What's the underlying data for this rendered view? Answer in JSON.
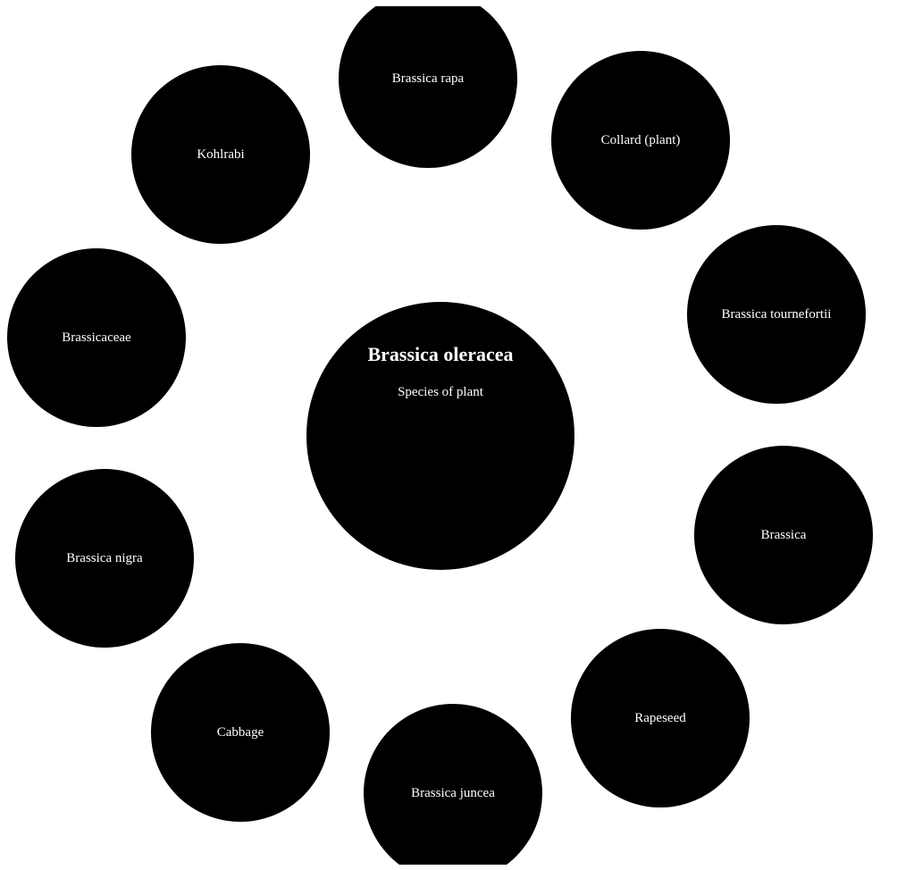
{
  "center": {
    "title": "Brassica oleracea",
    "subtitle": "Species of plant"
  },
  "related": [
    {
      "label": "Brassica rapa"
    },
    {
      "label": "Collard (plant)"
    },
    {
      "label": "Kohlrabi"
    },
    {
      "label": "Brassica tournefortii"
    },
    {
      "label": "Brassicaceae"
    },
    {
      "label": "Brassica"
    },
    {
      "label": "Brassica nigra"
    },
    {
      "label": "Rapeseed"
    },
    {
      "label": "Cabbage"
    },
    {
      "label": "Brassica juncea"
    }
  ],
  "colors": {
    "background": "#ffffff",
    "node_fill": "#000000",
    "node_text": "#ffffff"
  }
}
